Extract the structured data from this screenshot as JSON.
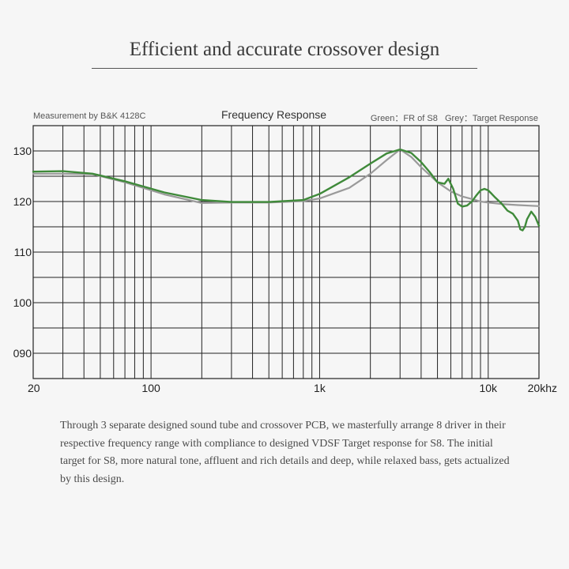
{
  "headline": "Efficient and accurate crossover design",
  "measurement_note": "Measurement by B&K 4128C",
  "legend_text": "Green：FR of S8   Grey：Target Response",
  "description": "Through 3 separate designed sound tube and crossover PCB, we masterfully arrange 8 driver in their respective frequency range with compliance to designed VDSF Target response for S8. The initial target for S8, more natural tone, affluent and rich details and deep, while relaxed bass, gets actualized by this design.",
  "colors": {
    "green": "#3f8a3a",
    "grey": "#9a9a9a",
    "grid": "#222222"
  },
  "chart_data": {
    "type": "line",
    "title": "Frequency Response",
    "x_scale": "log",
    "xlim": [
      20,
      20000
    ],
    "ylim": [
      85,
      135
    ],
    "grid": true,
    "legend_placement": "top-right",
    "x_tick_labels": [
      {
        "x": 20,
        "label": "20"
      },
      {
        "x": 100,
        "label": "100"
      },
      {
        "x": 1000,
        "label": "1k"
      },
      {
        "x": 10000,
        "label": "10k"
      },
      {
        "x": 20000,
        "label": "20khz"
      }
    ],
    "y_tick_labels": [
      {
        "y": 130,
        "label": "130"
      },
      {
        "y": 120,
        "label": "120"
      },
      {
        "y": 110,
        "label": "110"
      },
      {
        "y": 100,
        "label": "100"
      },
      {
        "y": 90,
        "label": "090"
      }
    ],
    "series": [
      {
        "name": "FR of S8",
        "color": "green",
        "x": [
          20,
          30,
          45,
          70,
          120,
          200,
          300,
          500,
          800,
          1000,
          1500,
          2000,
          2500,
          3000,
          3500,
          4000,
          4500,
          5000,
          5500,
          5800,
          6200,
          6600,
          7000,
          7500,
          8000,
          8500,
          9000,
          9500,
          10000,
          10500,
          11000,
          12000,
          13000,
          14000,
          15000,
          15500,
          16000,
          16500,
          17000,
          18000,
          19000,
          20000
        ],
        "y": [
          125.9,
          126.0,
          125.5,
          124.0,
          121.8,
          120.3,
          119.9,
          119.9,
          120.3,
          121.5,
          124.8,
          127.5,
          129.5,
          130.3,
          129.6,
          127.8,
          125.8,
          123.8,
          123.5,
          124.5,
          122.5,
          119.6,
          119.0,
          119.2,
          120.0,
          121.2,
          122.2,
          122.5,
          122.2,
          121.5,
          120.8,
          119.6,
          118.2,
          117.6,
          116.2,
          114.5,
          114.3,
          115.0,
          116.5,
          118.0,
          117.0,
          115.2
        ]
      },
      {
        "name": "Target Response",
        "color": "grey",
        "x": [
          20,
          30,
          45,
          70,
          120,
          200,
          300,
          500,
          800,
          1000,
          1500,
          2000,
          2500,
          3000,
          3500,
          4000,
          5000,
          6000,
          7000,
          8000,
          9000,
          10000,
          12000,
          15000,
          20000
        ],
        "y": [
          125.5,
          125.5,
          125.4,
          123.8,
          121.4,
          119.7,
          119.8,
          119.8,
          120.1,
          120.6,
          122.7,
          125.5,
          128.2,
          130.3,
          128.8,
          126.8,
          123.8,
          122.0,
          121.0,
          120.5,
          120.0,
          119.8,
          119.5,
          119.3,
          119.1
        ]
      }
    ]
  }
}
